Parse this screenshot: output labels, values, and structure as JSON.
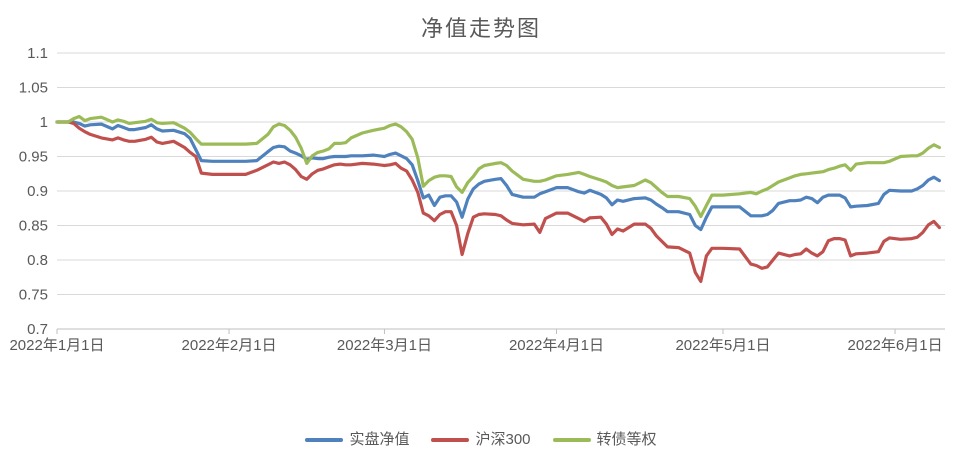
{
  "chart_data": {
    "type": "line",
    "title": "净值走势图",
    "xlabel": "",
    "ylabel": "",
    "ylim": [
      0.7,
      1.1
    ],
    "grid": "horizontal-only",
    "legend_position": "bottom",
    "background": "#ffffff",
    "gridline_color": "#d9d9d9",
    "axis_line_color": "#bfbfbf",
    "label_color": "#595959",
    "y_ticks": [
      {
        "v": 1.1,
        "label": "1.1"
      },
      {
        "v": 1.05,
        "label": "1.05"
      },
      {
        "v": 1.0,
        "label": "1"
      },
      {
        "v": 0.95,
        "label": "0.95"
      },
      {
        "v": 0.9,
        "label": "0.9"
      },
      {
        "v": 0.85,
        "label": "0.85"
      },
      {
        "v": 0.8,
        "label": "0.8"
      },
      {
        "v": 0.75,
        "label": "0.75"
      },
      {
        "v": 0.7,
        "label": "0.7"
      }
    ],
    "x_unit": "days since 2022-01-01",
    "x_ticks": [
      {
        "day": 0,
        "label": "2022年1月1日"
      },
      {
        "day": 31,
        "label": "2022年2月1日"
      },
      {
        "day": 59,
        "label": "2022年3月1日"
      },
      {
        "day": 90,
        "label": "2022年4月1日"
      },
      {
        "day": 120,
        "label": "2022年5月1日"
      },
      {
        "day": 151,
        "label": "2022年6月1日"
      }
    ],
    "days": [
      0,
      2,
      3,
      4,
      5,
      6,
      8,
      10,
      11,
      12,
      13,
      14,
      16,
      17,
      18,
      19,
      21,
      23,
      24,
      25,
      26,
      28,
      31,
      34,
      36,
      38,
      39,
      40,
      41,
      42,
      43,
      44,
      45,
      46,
      47,
      48,
      49,
      50,
      51,
      52,
      53,
      55,
      57,
      59,
      60,
      61,
      62,
      63,
      64,
      65,
      66,
      67,
      68,
      69,
      70,
      71,
      72,
      73,
      74,
      75,
      76,
      77,
      79,
      80,
      81,
      82,
      84,
      86,
      87,
      88,
      90,
      92,
      94,
      95,
      96,
      98,
      99,
      100,
      101,
      102,
      104,
      106,
      107,
      108,
      109,
      110,
      112,
      114,
      115,
      116,
      117,
      118,
      120,
      123,
      125,
      126,
      127,
      128,
      129,
      130,
      132,
      133,
      134,
      135,
      136,
      137,
      138,
      139,
      140,
      141,
      142,
      143,
      144,
      146,
      148,
      149,
      150,
      152,
      154,
      155,
      156,
      157,
      158,
      159
    ],
    "series": [
      {
        "name": "实盘净值",
        "color": "#4F81BD",
        "values": [
          1.0,
          1.0,
          1.0,
          0.998,
          0.994,
          0.996,
          0.997,
          0.99,
          0.995,
          0.992,
          0.989,
          0.989,
          0.992,
          0.996,
          0.99,
          0.987,
          0.988,
          0.983,
          0.976,
          0.96,
          0.944,
          0.943,
          0.943,
          0.943,
          0.944,
          0.957,
          0.963,
          0.965,
          0.964,
          0.958,
          0.955,
          0.951,
          0.946,
          0.948,
          0.947,
          0.947,
          0.949,
          0.95,
          0.95,
          0.95,
          0.951,
          0.951,
          0.952,
          0.95,
          0.953,
          0.955,
          0.951,
          0.947,
          0.938,
          0.915,
          0.89,
          0.894,
          0.879,
          0.891,
          0.893,
          0.893,
          0.884,
          0.862,
          0.888,
          0.903,
          0.91,
          0.914,
          0.917,
          0.918,
          0.908,
          0.895,
          0.891,
          0.891,
          0.896,
          0.899,
          0.905,
          0.905,
          0.899,
          0.897,
          0.901,
          0.895,
          0.89,
          0.88,
          0.887,
          0.885,
          0.889,
          0.89,
          0.887,
          0.881,
          0.876,
          0.87,
          0.87,
          0.866,
          0.85,
          0.844,
          0.862,
          0.877,
          0.877,
          0.877,
          0.864,
          0.864,
          0.864,
          0.866,
          0.872,
          0.882,
          0.886,
          0.886,
          0.887,
          0.891,
          0.889,
          0.883,
          0.891,
          0.894,
          0.894,
          0.894,
          0.89,
          0.877,
          0.878,
          0.879,
          0.882,
          0.895,
          0.901,
          0.9,
          0.9,
          0.903,
          0.908,
          0.916,
          0.92,
          0.915
        ]
      },
      {
        "name": "沪深300",
        "color": "#C0504D",
        "values": [
          1.0,
          1.0,
          0.998,
          0.991,
          0.986,
          0.982,
          0.977,
          0.974,
          0.977,
          0.974,
          0.972,
          0.972,
          0.975,
          0.978,
          0.971,
          0.969,
          0.972,
          0.963,
          0.956,
          0.95,
          0.926,
          0.924,
          0.924,
          0.924,
          0.93,
          0.938,
          0.942,
          0.94,
          0.942,
          0.938,
          0.931,
          0.921,
          0.917,
          0.925,
          0.93,
          0.932,
          0.935,
          0.938,
          0.939,
          0.938,
          0.938,
          0.94,
          0.939,
          0.937,
          0.938,
          0.94,
          0.933,
          0.929,
          0.916,
          0.898,
          0.868,
          0.864,
          0.857,
          0.866,
          0.87,
          0.87,
          0.85,
          0.808,
          0.838,
          0.862,
          0.866,
          0.867,
          0.866,
          0.864,
          0.858,
          0.853,
          0.851,
          0.852,
          0.84,
          0.86,
          0.868,
          0.868,
          0.86,
          0.856,
          0.861,
          0.862,
          0.852,
          0.837,
          0.845,
          0.842,
          0.852,
          0.852,
          0.846,
          0.835,
          0.827,
          0.819,
          0.818,
          0.81,
          0.782,
          0.769,
          0.806,
          0.817,
          0.817,
          0.816,
          0.794,
          0.792,
          0.788,
          0.79,
          0.8,
          0.81,
          0.806,
          0.808,
          0.809,
          0.816,
          0.81,
          0.806,
          0.812,
          0.828,
          0.831,
          0.831,
          0.829,
          0.806,
          0.809,
          0.81,
          0.812,
          0.827,
          0.832,
          0.83,
          0.831,
          0.833,
          0.84,
          0.851,
          0.856,
          0.847
        ]
      },
      {
        "name": "转债等权",
        "color": "#9BBB59",
        "values": [
          1.0,
          1.0,
          1.005,
          1.008,
          1.002,
          1.005,
          1.007,
          1.0,
          1.003,
          1.001,
          0.998,
          0.999,
          1.001,
          1.004,
          0.999,
          0.998,
          0.999,
          0.991,
          0.985,
          0.976,
          0.968,
          0.968,
          0.968,
          0.968,
          0.969,
          0.982,
          0.993,
          0.997,
          0.995,
          0.988,
          0.978,
          0.962,
          0.94,
          0.951,
          0.956,
          0.958,
          0.961,
          0.969,
          0.969,
          0.97,
          0.977,
          0.984,
          0.988,
          0.991,
          0.995,
          0.997,
          0.993,
          0.986,
          0.975,
          0.948,
          0.907,
          0.915,
          0.92,
          0.922,
          0.922,
          0.921,
          0.906,
          0.898,
          0.912,
          0.921,
          0.932,
          0.937,
          0.94,
          0.941,
          0.937,
          0.929,
          0.917,
          0.914,
          0.914,
          0.916,
          0.922,
          0.924,
          0.927,
          0.924,
          0.921,
          0.916,
          0.913,
          0.908,
          0.905,
          0.906,
          0.908,
          0.916,
          0.912,
          0.905,
          0.898,
          0.892,
          0.892,
          0.889,
          0.878,
          0.863,
          0.879,
          0.894,
          0.894,
          0.896,
          0.898,
          0.896,
          0.9,
          0.903,
          0.908,
          0.913,
          0.919,
          0.922,
          0.924,
          0.925,
          0.926,
          0.927,
          0.928,
          0.931,
          0.933,
          0.936,
          0.938,
          0.93,
          0.939,
          0.941,
          0.941,
          0.941,
          0.943,
          0.95,
          0.951,
          0.951,
          0.955,
          0.962,
          0.967,
          0.963
        ]
      }
    ]
  }
}
